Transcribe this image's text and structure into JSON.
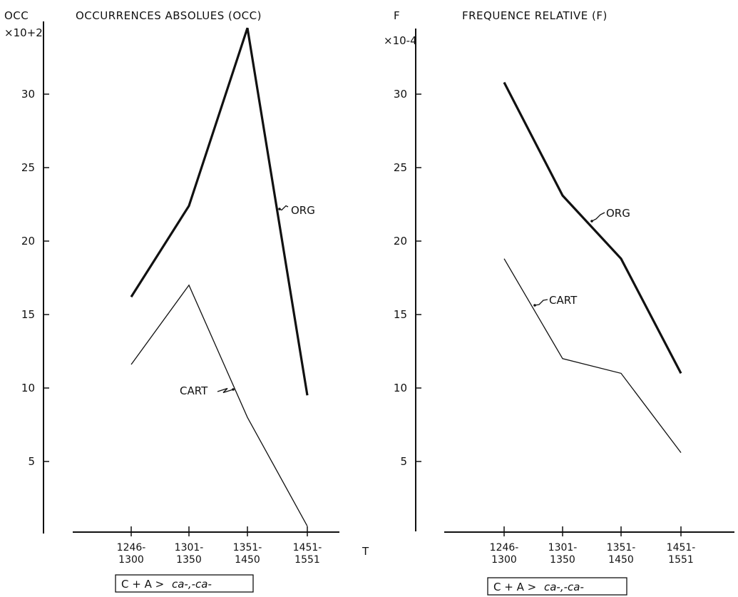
{
  "chart_data": [
    {
      "type": "line",
      "title": "OCCURRENCES ABSOLUES (OCC)",
      "ylabel": "OCC",
      "yscale_label": "×10+2",
      "xlabel": "T",
      "categories": [
        "1246-1300",
        "1301-1350",
        "1351-1450",
        "1451-1551"
      ],
      "y_ticks": [
        5,
        10,
        15,
        20,
        25,
        30
      ],
      "ylim": [
        0,
        34.5
      ],
      "series": [
        {
          "name": "ORG",
          "values": [
            16.2,
            22.4,
            34.5,
            9.5
          ],
          "style": "thick"
        },
        {
          "name": "CART",
          "values": [
            11.6,
            17.0,
            8.0,
            0.6
          ],
          "style": "thin"
        }
      ],
      "formula": {
        "text": "C + A  >",
        "italic": "ca-,-ca-"
      }
    },
    {
      "type": "line",
      "title": "FREQUENCE RELATIVE (F)",
      "ylabel": "F",
      "yscale_label": "×10-4",
      "xlabel": "",
      "categories": [
        "1246-1300",
        "1301-1350",
        "1351-1450",
        "1451-1551"
      ],
      "y_ticks": [
        5,
        10,
        15,
        20,
        25,
        30
      ],
      "ylim": [
        0,
        34.5
      ],
      "series": [
        {
          "name": "ORG",
          "values": [
            30.8,
            23.1,
            18.8,
            11.0
          ],
          "style": "thick"
        },
        {
          "name": "CART",
          "values": [
            18.8,
            12.0,
            11.0,
            5.6
          ],
          "style": "thin"
        }
      ],
      "formula": {
        "text": "C + A  >",
        "italic": "ca-,-ca-"
      }
    }
  ]
}
